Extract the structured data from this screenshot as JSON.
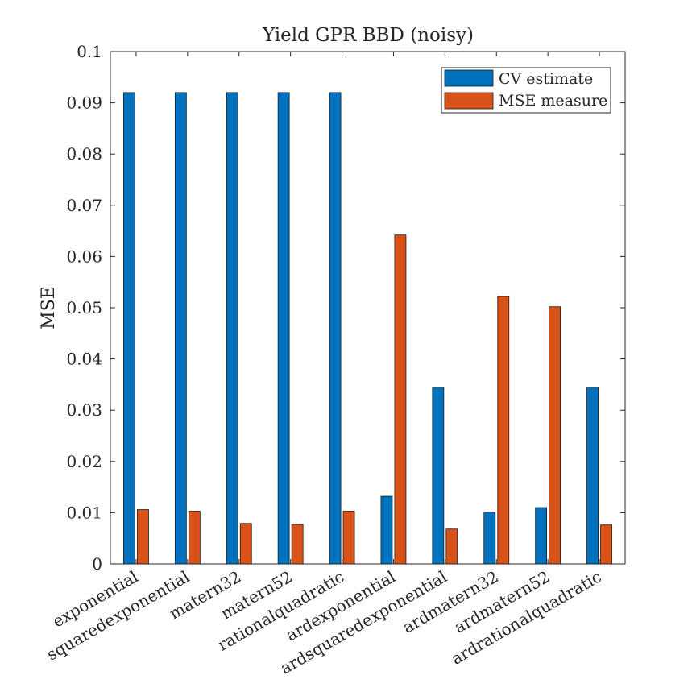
{
  "chart_data": {
    "type": "bar",
    "title": "Yield GPR BBD (noisy)",
    "xlabel": "",
    "ylabel": "MSE",
    "ylim": [
      0,
      0.1
    ],
    "yticks": [
      0,
      0.01,
      0.02,
      0.03,
      0.04,
      0.05,
      0.06,
      0.07,
      0.08,
      0.09,
      0.1
    ],
    "ytick_labels": [
      "0",
      "0.01",
      "0.02",
      "0.03",
      "0.04",
      "0.05",
      "0.06",
      "0.07",
      "0.08",
      "0.09",
      "0.1"
    ],
    "grid": false,
    "legend_position": "top-right",
    "categories": [
      "exponential",
      "squaredexponential",
      "matern32",
      "matern52",
      "rationalquadratic",
      "ardexponential",
      "ardsquaredexponential",
      "ardmatern32",
      "ardmatern52",
      "ardrationalquadratic"
    ],
    "series": [
      {
        "name": "CV estimate",
        "color": "#0072bd",
        "values": [
          0.092,
          0.092,
          0.092,
          0.092,
          0.092,
          0.0132,
          0.0345,
          0.0101,
          0.011,
          0.0345
        ]
      },
      {
        "name": "MSE measure",
        "color": "#d95319",
        "values": [
          0.0106,
          0.0103,
          0.0079,
          0.0077,
          0.0103,
          0.0642,
          0.0068,
          0.0522,
          0.0502,
          0.0076
        ]
      }
    ]
  }
}
